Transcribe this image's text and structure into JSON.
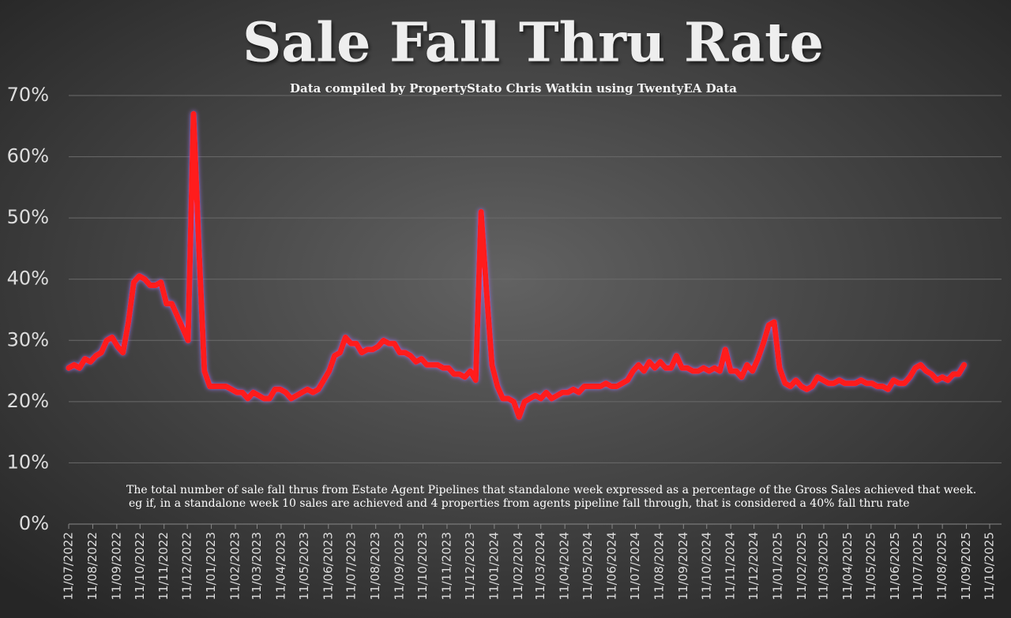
{
  "chart_data": {
    "type": "line",
    "title": "Sale Fall Thru Rate",
    "subtitle": "Data compiled by PropertyStato Chris Watkin using TwentyEA Data",
    "annotations": [
      "The total number of sale fall thrus from Estate Agent Pipelines that standalone week expressed as a percentage of the Gross Sales achieved that week.",
      "eg if, in a standalone week 10 sales are achieved and 4 properties from agents pipeline fall through, that is considered a 40%  fall thru rate"
    ],
    "color": "#ff1a1a",
    "x": [
      "11/07/2022",
      "18/07/2022",
      "25/07/2022",
      "01/08/2022",
      "08/08/2022",
      "15/08/2022",
      "22/08/2022",
      "29/08/2022",
      "05/09/2022",
      "12/09/2022",
      "19/09/2022",
      "26/09/2022",
      "03/10/2022",
      "10/10/2022",
      "17/10/2022",
      "24/10/2022",
      "31/10/2022",
      "07/11/2022",
      "14/11/2022",
      "21/11/2022",
      "28/11/2022",
      "05/12/2022",
      "12/12/2022",
      "19/12/2022",
      "26/12/2022",
      "02/01/2023",
      "09/01/2023",
      "16/01/2023",
      "23/01/2023",
      "30/01/2023",
      "06/02/2023",
      "13/02/2023",
      "20/02/2023",
      "27/02/2023",
      "06/03/2023",
      "13/03/2023",
      "20/03/2023",
      "27/03/2023",
      "03/04/2023",
      "10/04/2023",
      "17/04/2023",
      "24/04/2023",
      "01/05/2023",
      "08/05/2023",
      "15/05/2023",
      "22/05/2023",
      "29/05/2023",
      "05/06/2023",
      "12/06/2023",
      "19/06/2023",
      "26/06/2023",
      "03/07/2023",
      "10/07/2023",
      "17/07/2023",
      "24/07/2023",
      "31/07/2023",
      "07/08/2023",
      "14/08/2023",
      "21/08/2023",
      "28/08/2023",
      "04/09/2023",
      "11/09/2023",
      "18/09/2023",
      "25/09/2023",
      "02/10/2023",
      "09/10/2023",
      "16/10/2023",
      "23/10/2023",
      "30/10/2023",
      "06/11/2023",
      "13/11/2023",
      "20/11/2023",
      "27/11/2023",
      "04/12/2023",
      "11/12/2023",
      "18/12/2023",
      "25/12/2023",
      "01/01/2024",
      "08/01/2024",
      "15/01/2024",
      "22/01/2024",
      "29/01/2024",
      "05/02/2024",
      "12/02/2024",
      "19/02/2024",
      "26/02/2024",
      "04/03/2024",
      "11/03/2024",
      "18/03/2024",
      "25/03/2024",
      "01/04/2024",
      "08/04/2024",
      "15/04/2024",
      "22/04/2024",
      "29/04/2024",
      "06/05/2024",
      "13/05/2024",
      "20/05/2024",
      "27/05/2024",
      "03/06/2024",
      "10/06/2024",
      "17/06/2024",
      "24/06/2024",
      "01/07/2024",
      "08/07/2024",
      "15/07/2024",
      "22/07/2024",
      "29/07/2024",
      "05/08/2024",
      "12/08/2024",
      "19/08/2024",
      "26/08/2024",
      "02/09/2024",
      "09/09/2024",
      "16/09/2024",
      "23/09/2024",
      "30/09/2024",
      "07/10/2024",
      "14/10/2024",
      "21/10/2024",
      "28/10/2024",
      "04/11/2024",
      "11/11/2024",
      "18/11/2024",
      "25/11/2024",
      "02/12/2024",
      "09/12/2024",
      "16/12/2024",
      "23/12/2024",
      "30/12/2024",
      "06/01/2025",
      "13/01/2025",
      "20/01/2025",
      "27/01/2025",
      "03/02/2025",
      "10/02/2025",
      "17/02/2025",
      "24/02/2025",
      "03/03/2025",
      "10/03/2025",
      "17/03/2025",
      "24/03/2025",
      "31/03/2025",
      "07/04/2025",
      "14/04/2025",
      "21/04/2025",
      "28/04/2025",
      "05/05/2025",
      "12/05/2025",
      "19/05/2025",
      "26/05/2025",
      "02/06/2025",
      "09/06/2025",
      "16/06/2025",
      "23/06/2025",
      "30/06/2025",
      "07/07/2025",
      "14/07/2025",
      "21/07/2025",
      "28/07/2025",
      "04/08/2025",
      "11/08/2025",
      "18/08/2025",
      "25/08/2025",
      "01/09/2025",
      "08/09/2025"
    ],
    "values": [
      25.5,
      26,
      25.5,
      27,
      26.5,
      27.5,
      28,
      30,
      30.5,
      29,
      28,
      33,
      39.5,
      40.5,
      40,
      39,
      39,
      39.5,
      36,
      36,
      34,
      32,
      30,
      67,
      45,
      25,
      22.5,
      22.5,
      22.5,
      22.5,
      22,
      21.5,
      21.5,
      20.5,
      21.5,
      21,
      20.5,
      20.5,
      22,
      22,
      21.5,
      20.5,
      21,
      21.5,
      22,
      21.5,
      22,
      23.5,
      25,
      27.5,
      28,
      30.5,
      29.5,
      29.5,
      28,
      28.5,
      28.5,
      29,
      30,
      29.5,
      29.5,
      28,
      28,
      27.5,
      26.5,
      27,
      26,
      26,
      26,
      25.5,
      25.5,
      24.5,
      24.5,
      24,
      25,
      23.5,
      51,
      38,
      26,
      22.5,
      20.5,
      20.5,
      20,
      17.5,
      20,
      20.5,
      21,
      20.5,
      21.5,
      20.5,
      21,
      21.5,
      21.5,
      22,
      21.5,
      22.5,
      22.5,
      22.5,
      22.5,
      23,
      22.5,
      22.5,
      23,
      23.5,
      25,
      26,
      25,
      26.5,
      25.5,
      26.5,
      25.5,
      25.5,
      27.5,
      25.5,
      25.5,
      25,
      25,
      25.5,
      25,
      25.5,
      25,
      28.5,
      25,
      25,
      24,
      26,
      25,
      27,
      29.5,
      32.5,
      33,
      25.5,
      23,
      22.5,
      23.5,
      22.5,
      22,
      22.5,
      24,
      23.5,
      23,
      23,
      23.5,
      23,
      23,
      23,
      23.5,
      23,
      23,
      22.5,
      22.5,
      22,
      23.5,
      23,
      23,
      24,
      25.5,
      26,
      25,
      24.5,
      23.5,
      24,
      23.5,
      24.5,
      24.5,
      26
    ],
    "xlim": [
      "11/07/2022",
      "11/10/2025"
    ],
    "xticks": [
      "11/07/2022",
      "11/08/2022",
      "11/09/2022",
      "11/10/2022",
      "11/11/2022",
      "11/12/2022",
      "11/01/2023",
      "11/02/2023",
      "11/03/2023",
      "11/04/2023",
      "11/05/2023",
      "11/06/2023",
      "11/07/2023",
      "11/08/2023",
      "11/09/2023",
      "11/10/2023",
      "11/11/2023",
      "11/12/2023",
      "11/01/2024",
      "11/02/2024",
      "11/03/2024",
      "11/04/2024",
      "11/05/2024",
      "11/06/2024",
      "11/07/2024",
      "11/08/2024",
      "11/09/2024",
      "11/10/2024",
      "11/11/2024",
      "11/12/2024",
      "11/01/2025",
      "11/02/2025",
      "11/03/2025",
      "11/04/2025",
      "11/05/2025",
      "11/06/2025",
      "11/07/2025",
      "11/08/2025",
      "11/09/2025",
      "11/10/2025"
    ],
    "ylim": [
      0,
      70
    ],
    "yticks": [
      {
        "value": 0,
        "label": "0%"
      },
      {
        "value": 10,
        "label": "10%"
      },
      {
        "value": 20,
        "label": "20%"
      },
      {
        "value": 30,
        "label": "30%"
      },
      {
        "value": 40,
        "label": "40%"
      },
      {
        "value": 50,
        "label": "50%"
      },
      {
        "value": 60,
        "label": "60%"
      },
      {
        "value": 70,
        "label": "70%"
      }
    ],
    "grid": true
  }
}
